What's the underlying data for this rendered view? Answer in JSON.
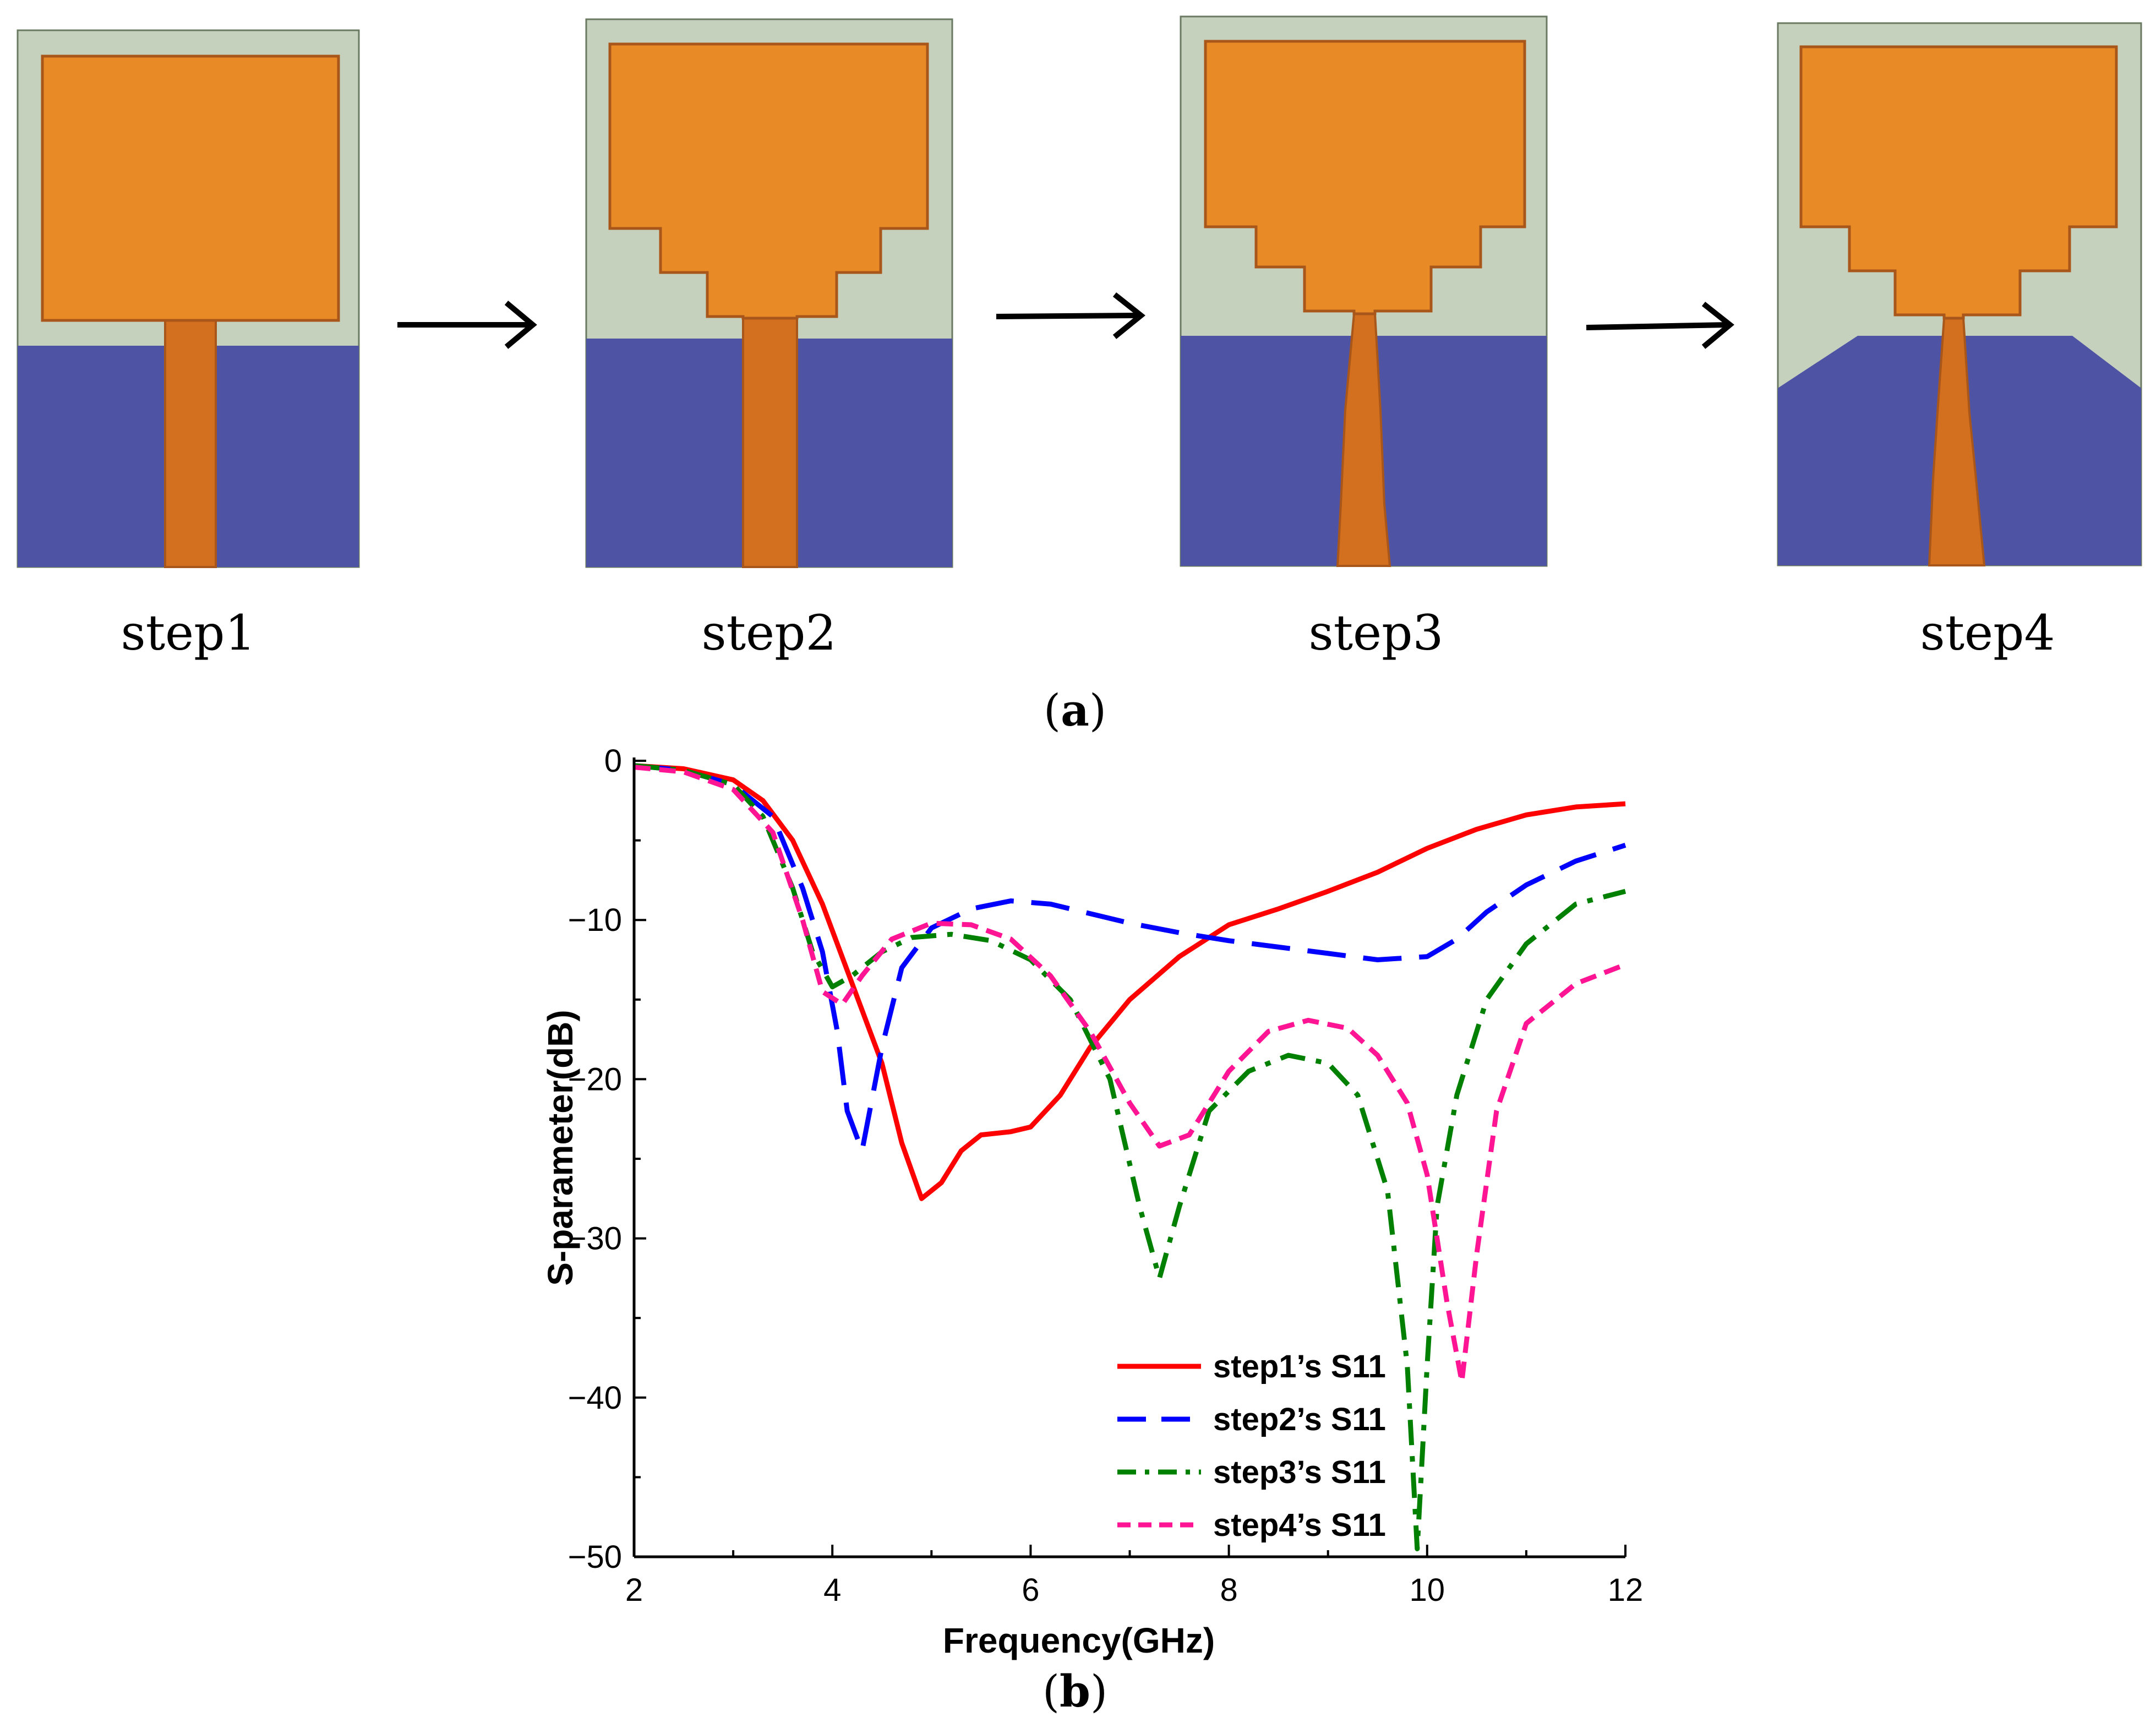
{
  "panel_a": {
    "steps": [
      {
        "label": "step1"
      },
      {
        "label": "step2"
      },
      {
        "label": "step3"
      },
      {
        "label": "step4"
      }
    ],
    "caption_open": "(",
    "caption_letter": "a",
    "caption_close": ")",
    "colors": {
      "substrate": "#c6d1bd",
      "patch": "#e88b27",
      "patch_edge": "#a8561a",
      "feed": "#d2701f",
      "ground": "#4f53a4"
    }
  },
  "panel_b": {
    "caption_open": "(",
    "caption_letter": "b",
    "caption_close": ")"
  },
  "chart_data": {
    "type": "line",
    "title": "",
    "xlabel": "Frequency(GHz)",
    "ylabel": "S-parameter(dB)",
    "xlim": [
      2,
      12
    ],
    "ylim": [
      -50,
      0
    ],
    "xticks": [
      2,
      4,
      6,
      8,
      10,
      12
    ],
    "xtick_labels": [
      "2",
      "4",
      "6",
      "8",
      "10",
      "12"
    ],
    "yticks": [
      0,
      -10,
      -20,
      -30,
      -40,
      -50
    ],
    "ytick_labels": [
      "0",
      "−10",
      "−20",
      "−30",
      "−40",
      "−50"
    ],
    "legend_position": "bottom-right",
    "series": [
      {
        "name": "step1’s S11",
        "color": "#ff0000",
        "style": "solid",
        "points": [
          [
            2,
            -0.3
          ],
          [
            2.5,
            -0.5
          ],
          [
            3,
            -1.2
          ],
          [
            3.3,
            -2.5
          ],
          [
            3.6,
            -5
          ],
          [
            3.9,
            -9
          ],
          [
            4.2,
            -14
          ],
          [
            4.5,
            -19
          ],
          [
            4.7,
            -24
          ],
          [
            4.9,
            -27.5
          ],
          [
            5.1,
            -26.5
          ],
          [
            5.3,
            -24.5
          ],
          [
            5.5,
            -23.5
          ],
          [
            5.8,
            -23.3
          ],
          [
            6.0,
            -23
          ],
          [
            6.3,
            -21
          ],
          [
            6.6,
            -18
          ],
          [
            7.0,
            -15
          ],
          [
            7.5,
            -12.3
          ],
          [
            8.0,
            -10.3
          ],
          [
            8.5,
            -9.3
          ],
          [
            9.0,
            -8.2
          ],
          [
            9.5,
            -7
          ],
          [
            10.0,
            -5.5
          ],
          [
            10.5,
            -4.3
          ],
          [
            11.0,
            -3.4
          ],
          [
            11.5,
            -2.9
          ],
          [
            12,
            -2.7
          ]
        ]
      },
      {
        "name": "step2’s S11",
        "color": "#0000ff",
        "style": "dashed",
        "points": [
          [
            2,
            -0.3
          ],
          [
            2.5,
            -0.6
          ],
          [
            3,
            -1.5
          ],
          [
            3.4,
            -3.5
          ],
          [
            3.7,
            -8
          ],
          [
            3.9,
            -12
          ],
          [
            4.05,
            -17
          ],
          [
            4.15,
            -22
          ],
          [
            4.3,
            -24.5
          ],
          [
            4.5,
            -18
          ],
          [
            4.7,
            -13
          ],
          [
            5.0,
            -10.5
          ],
          [
            5.4,
            -9.3
          ],
          [
            5.8,
            -8.8
          ],
          [
            6.2,
            -9
          ],
          [
            6.6,
            -9.6
          ],
          [
            7.0,
            -10.2
          ],
          [
            7.5,
            -10.8
          ],
          [
            8.0,
            -11.3
          ],
          [
            8.5,
            -11.7
          ],
          [
            9.0,
            -12.1
          ],
          [
            9.5,
            -12.5
          ],
          [
            10.0,
            -12.3
          ],
          [
            10.3,
            -11.2
          ],
          [
            10.6,
            -9.5
          ],
          [
            11.0,
            -7.8
          ],
          [
            11.5,
            -6.3
          ],
          [
            12,
            -5.3
          ]
        ]
      },
      {
        "name": "step3’s S11",
        "color": "#008000",
        "style": "dashdot",
        "points": [
          [
            2,
            -0.3
          ],
          [
            2.5,
            -0.6
          ],
          [
            3,
            -1.5
          ],
          [
            3.3,
            -3.5
          ],
          [
            3.6,
            -8
          ],
          [
            3.8,
            -12
          ],
          [
            4.0,
            -14.2
          ],
          [
            4.2,
            -13.5
          ],
          [
            4.5,
            -12
          ],
          [
            4.8,
            -11.1
          ],
          [
            5.2,
            -10.9
          ],
          [
            5.6,
            -11.3
          ],
          [
            6.0,
            -12.5
          ],
          [
            6.4,
            -15
          ],
          [
            6.8,
            -20
          ],
          [
            7.1,
            -28
          ],
          [
            7.3,
            -32.5
          ],
          [
            7.5,
            -28
          ],
          [
            7.8,
            -22
          ],
          [
            8.2,
            -19.5
          ],
          [
            8.6,
            -18.5
          ],
          [
            9.0,
            -19
          ],
          [
            9.3,
            -21
          ],
          [
            9.6,
            -27
          ],
          [
            9.8,
            -38
          ],
          [
            9.9,
            -49.5
          ],
          [
            10.0,
            -38
          ],
          [
            10.1,
            -28
          ],
          [
            10.3,
            -21
          ],
          [
            10.6,
            -15
          ],
          [
            11.0,
            -11.5
          ],
          [
            11.5,
            -9
          ],
          [
            12,
            -8.2
          ]
        ]
      },
      {
        "name": "step4’s S11",
        "color": "#ff1493",
        "style": "dotted",
        "points": [
          [
            2,
            -0.4
          ],
          [
            2.5,
            -0.7
          ],
          [
            3,
            -1.8
          ],
          [
            3.4,
            -4.5
          ],
          [
            3.7,
            -10
          ],
          [
            3.9,
            -14.5
          ],
          [
            4.1,
            -15.3
          ],
          [
            4.3,
            -13.5
          ],
          [
            4.6,
            -11.2
          ],
          [
            5.0,
            -10.2
          ],
          [
            5.4,
            -10.3
          ],
          [
            5.8,
            -11.2
          ],
          [
            6.2,
            -13.5
          ],
          [
            6.6,
            -17
          ],
          [
            7.0,
            -21.5
          ],
          [
            7.3,
            -24.2
          ],
          [
            7.6,
            -23.5
          ],
          [
            8.0,
            -19.5
          ],
          [
            8.4,
            -17
          ],
          [
            8.8,
            -16.3
          ],
          [
            9.2,
            -16.8
          ],
          [
            9.5,
            -18.5
          ],
          [
            9.8,
            -21.5
          ],
          [
            10.0,
            -26
          ],
          [
            10.2,
            -34
          ],
          [
            10.35,
            -39
          ],
          [
            10.5,
            -31
          ],
          [
            10.7,
            -22
          ],
          [
            11.0,
            -16.5
          ],
          [
            11.5,
            -14
          ],
          [
            12,
            -12.8
          ]
        ]
      }
    ]
  }
}
